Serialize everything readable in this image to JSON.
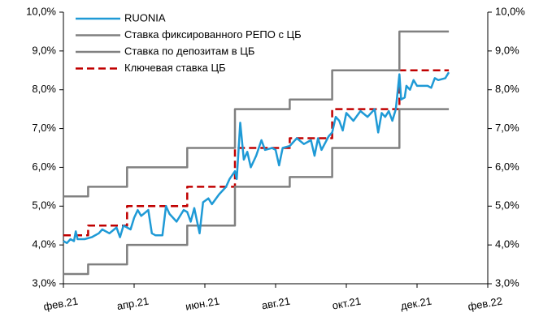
{
  "chart_data": {
    "type": "line",
    "xlim": [
      0,
      12
    ],
    "xticks": [
      {
        "value": 0,
        "label": "фев.21"
      },
      {
        "value": 2,
        "label": "апр.21"
      },
      {
        "value": 4,
        "label": "июн.21"
      },
      {
        "value": 6,
        "label": "авг.21"
      },
      {
        "value": 8,
        "label": "окт.21"
      },
      {
        "value": 10,
        "label": "дек.21"
      },
      {
        "value": 12,
        "label": "фев.22"
      }
    ],
    "ylim": [
      3,
      10
    ],
    "yticks": [
      {
        "value": 3,
        "label": "3,0%"
      },
      {
        "value": 4,
        "label": "4,0%"
      },
      {
        "value": 5,
        "label": "5,0%"
      },
      {
        "value": 6,
        "label": "6,0%"
      },
      {
        "value": 7,
        "label": "7,0%"
      },
      {
        "value": 8,
        "label": "8,0%"
      },
      {
        "value": 9,
        "label": "9,0%"
      },
      {
        "value": 10,
        "label": "10,0%"
      }
    ],
    "y2lim": [
      3,
      10
    ],
    "y2ticks": [
      {
        "value": 3,
        "label": "3,0%"
      },
      {
        "value": 4,
        "label": "4,0%"
      },
      {
        "value": 5,
        "label": "5,0%"
      },
      {
        "value": 6,
        "label": "6,0%"
      },
      {
        "value": 7,
        "label": "7,0%"
      },
      {
        "value": 8,
        "label": "8,0%"
      },
      {
        "value": 9,
        "label": "9,0%"
      },
      {
        "value": 10,
        "label": "10,0%"
      }
    ],
    "legend": "upper left",
    "series": [
      {
        "name": "RUONIA",
        "color": "#1f9ad6",
        "dash": "solid",
        "x": [
          0,
          0.1,
          0.2,
          0.3,
          0.35,
          0.4,
          0.6,
          0.8,
          1.0,
          1.1,
          1.3,
          1.5,
          1.6,
          1.7,
          1.9,
          2.0,
          2.1,
          2.2,
          2.4,
          2.5,
          2.6,
          2.8,
          2.9,
          3.0,
          3.2,
          3.4,
          3.5,
          3.6,
          3.7,
          3.85,
          3.95,
          4.1,
          4.2,
          4.4,
          4.6,
          4.7,
          4.85,
          4.9,
          4.95,
          5.0,
          5.1,
          5.2,
          5.3,
          5.45,
          5.6,
          5.7,
          5.9,
          6.0,
          6.1,
          6.2,
          6.4,
          6.6,
          6.8,
          7.0,
          7.1,
          7.2,
          7.3,
          7.5,
          7.6,
          7.7,
          7.8,
          7.9,
          8.0,
          8.2,
          8.4,
          8.6,
          8.8,
          8.9,
          9.0,
          9.1,
          9.2,
          9.3,
          9.4,
          9.5,
          9.55,
          9.65,
          9.7,
          9.8,
          9.9,
          10.0,
          10.3,
          10.4,
          10.5,
          10.6,
          10.8,
          10.9
        ],
        "values": [
          4.1,
          4.05,
          4.15,
          4.1,
          4.35,
          4.15,
          4.15,
          4.2,
          4.3,
          4.4,
          4.3,
          4.45,
          4.2,
          4.5,
          4.4,
          4.7,
          4.9,
          4.75,
          4.9,
          4.3,
          4.25,
          4.25,
          5.0,
          4.8,
          4.6,
          4.9,
          4.85,
          4.6,
          4.95,
          4.3,
          5.1,
          5.2,
          5.05,
          5.3,
          5.5,
          5.7,
          5.9,
          5.7,
          6.4,
          7.15,
          6.2,
          6.4,
          6.0,
          6.3,
          6.7,
          6.45,
          6.5,
          6.45,
          6.05,
          6.5,
          6.55,
          6.75,
          6.6,
          6.7,
          6.3,
          6.75,
          6.45,
          6.8,
          6.9,
          7.3,
          7.2,
          6.95,
          7.4,
          7.2,
          7.45,
          7.3,
          7.5,
          6.9,
          7.4,
          7.3,
          7.45,
          7.2,
          7.5,
          8.4,
          7.75,
          7.8,
          8.1,
          8.0,
          8.25,
          8.1,
          8.1,
          8.05,
          8.3,
          8.25,
          8.3,
          8.45
        ]
      },
      {
        "name": "Ставка фиксированного РЕПО с ЦБ",
        "color": "#808080",
        "dash": "solid",
        "x": [
          0,
          0.7,
          0.7,
          1.8,
          1.8,
          3.5,
          3.5,
          4.85,
          4.85,
          6.4,
          6.4,
          7.6,
          7.6,
          9.5,
          9.5,
          10.9
        ],
        "values": [
          5.25,
          5.25,
          5.5,
          5.5,
          6,
          6,
          6.5,
          6.5,
          7.5,
          7.5,
          7.75,
          7.75,
          8.5,
          8.5,
          9.5,
          9.5
        ]
      },
      {
        "name": "Ставка по депозитам в ЦБ",
        "color": "#808080",
        "dash": "solid",
        "x": [
          0,
          0.7,
          0.7,
          1.8,
          1.8,
          3.5,
          3.5,
          4.85,
          4.85,
          6.4,
          6.4,
          7.6,
          7.6,
          9.5,
          9.5,
          10.9
        ],
        "values": [
          3.25,
          3.25,
          3.5,
          3.5,
          4,
          4,
          4.5,
          4.5,
          5.5,
          5.5,
          5.75,
          5.75,
          6.5,
          6.5,
          7.5,
          7.5
        ]
      },
      {
        "name": "Ключевая ставка ЦБ",
        "color": "#c00000",
        "dash": "dashed",
        "x": [
          0,
          0.7,
          0.7,
          1.8,
          1.8,
          3.5,
          3.5,
          4.85,
          4.85,
          6.4,
          6.4,
          7.6,
          7.6,
          9.5,
          9.5,
          10.9
        ],
        "values": [
          4.25,
          4.25,
          4.5,
          4.5,
          5,
          5,
          5.5,
          5.5,
          6.5,
          6.5,
          6.75,
          6.75,
          7.5,
          7.5,
          8.5,
          8.5
        ]
      }
    ]
  }
}
